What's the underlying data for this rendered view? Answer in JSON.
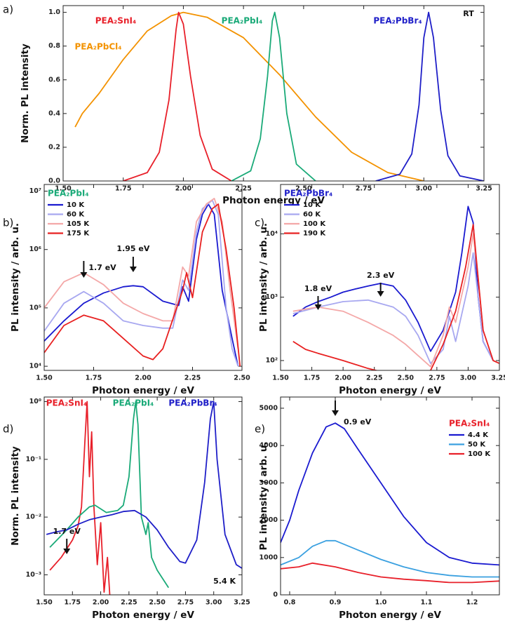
{
  "chart_data": [
    {
      "type": "line",
      "label": "a)",
      "xlabel": "Photon energy / eV",
      "ylabel": "Norm. PL intensity",
      "xlim": [
        1.5,
        3.25
      ],
      "ylim": [
        0,
        1.04
      ],
      "xticks": [
        {
          "value": 1.5,
          "label": "1.50"
        },
        1.75,
        {
          "value": 2,
          "label": "2.00"
        },
        2.25,
        {
          "value": 2.5,
          "label": "2.50"
        },
        2.75,
        {
          "value": 3,
          "label": "3.00"
        },
        3.25
      ],
      "yticks": [
        {
          "value": 0,
          "label": "0.0"
        },
        0.2,
        0.4,
        0.6,
        0.8,
        {
          "value": 1,
          "label": "1.0"
        }
      ],
      "log_y": false,
      "legend": "labels",
      "series": [
        {
          "name": "PEA₂PbCl₄",
          "color": "#f39200",
          "x": [
            1.55,
            1.58,
            1.65,
            1.75,
            1.85,
            1.95,
            2.0,
            2.1,
            2.25,
            2.4,
            2.55,
            2.7,
            2.85,
            3.0
          ],
          "values": [
            0.32,
            0.4,
            0.52,
            0.72,
            0.89,
            0.98,
            1.0,
            0.97,
            0.85,
            0.63,
            0.38,
            0.17,
            0.05,
            0.0
          ]
        },
        {
          "name": "PEA₂SnI₄",
          "color": "#e8202a",
          "x": [
            1.75,
            1.85,
            1.9,
            1.94,
            1.97,
            1.98,
            2.0,
            2.03,
            2.07,
            2.12,
            2.2
          ],
          "values": [
            0,
            0.05,
            0.17,
            0.48,
            0.9,
            1.0,
            0.93,
            0.62,
            0.27,
            0.07,
            0
          ]
        },
        {
          "name": "PEA₂PbI₄",
          "color": "#1aaa78",
          "x": [
            2.2,
            2.28,
            2.32,
            2.35,
            2.37,
            2.38,
            2.4,
            2.43,
            2.47,
            2.55
          ],
          "values": [
            0,
            0.06,
            0.25,
            0.62,
            0.95,
            1.0,
            0.85,
            0.4,
            0.1,
            0
          ]
        },
        {
          "name": "PEA₂PbBr₄",
          "color": "#1f1fc8",
          "x": [
            2.8,
            2.9,
            2.95,
            2.98,
            3.0,
            3.02,
            3.04,
            3.07,
            3.1,
            3.15,
            3.25
          ],
          "values": [
            0,
            0.04,
            0.16,
            0.45,
            0.85,
            1.0,
            0.85,
            0.42,
            0.15,
            0.03,
            0
          ]
        }
      ],
      "annotations": [
        {
          "text": "RT"
        }
      ]
    },
    {
      "type": "line",
      "label": "b)",
      "xlabel": "Photon energy / eV",
      "ylabel": "PL intensity / arb. u.",
      "xlim": [
        1.5,
        2.5
      ],
      "ylim": [
        8500,
        13000000
      ],
      "xticks": [
        {
          "value": 1.5,
          "label": "1.50"
        },
        1.75,
        {
          "value": 2,
          "label": "2.00"
        },
        2.25,
        {
          "value": 2.5,
          "label": "2.50"
        }
      ],
      "yticks": [
        {
          "value": 10000,
          "label": "10⁴"
        },
        {
          "value": 100000,
          "label": "10⁵"
        },
        {
          "value": 1000000,
          "label": "10⁶"
        },
        {
          "value": 10000000,
          "label": "10⁷"
        }
      ],
      "log_y": true,
      "legend": "upper left",
      "legend_title": "PEA₂PbI₄",
      "legend_title_color": "#1aaa78",
      "series": [
        {
          "name": "10 K",
          "color": "#1a1ad0",
          "x": [
            1.5,
            1.6,
            1.7,
            1.8,
            1.9,
            1.95,
            2.0,
            2.1,
            2.18,
            2.2,
            2.23,
            2.27,
            2.3,
            2.33,
            2.36,
            2.4,
            2.45,
            2.48
          ],
          "values": [
            27000,
            60000,
            120000,
            180000,
            230000,
            240000,
            230000,
            130000,
            110000,
            230000,
            130000,
            1500000,
            4000000,
            6000000,
            4000000,
            200000,
            30000,
            10000
          ]
        },
        {
          "name": "60 K",
          "color": "#a8a8f0",
          "x": [
            1.5,
            1.6,
            1.7,
            1.8,
            1.9,
            2.0,
            2.1,
            2.15,
            2.2,
            2.23,
            2.27,
            2.3,
            2.35,
            2.38,
            2.42,
            2.45,
            2.48
          ],
          "values": [
            40000,
            120000,
            190000,
            120000,
            60000,
            50000,
            45000,
            45000,
            300000,
            200000,
            2000000,
            5000000,
            7000000,
            4000000,
            100000,
            20000,
            10000
          ]
        },
        {
          "name": "105 K",
          "color": "#f4a8a8",
          "x": [
            1.5,
            1.6,
            1.7,
            1.8,
            1.9,
            2.0,
            2.1,
            2.15,
            2.2,
            2.23,
            2.27,
            2.32,
            2.36,
            2.4,
            2.44,
            2.48
          ],
          "values": [
            100000,
            280000,
            400000,
            250000,
            120000,
            80000,
            60000,
            60000,
            500000,
            350000,
            3000000,
            6000000,
            7500000,
            3000000,
            200000,
            20000
          ]
        },
        {
          "name": "175 K",
          "color": "#e82020",
          "x": [
            1.5,
            1.6,
            1.7,
            1.8,
            1.9,
            2.0,
            2.05,
            2.1,
            2.2,
            2.22,
            2.25,
            2.3,
            2.35,
            2.38,
            2.42,
            2.46,
            2.49
          ],
          "values": [
            17000,
            50000,
            75000,
            60000,
            30000,
            15000,
            13000,
            20000,
            200000,
            400000,
            150000,
            2000000,
            5000000,
            6000000,
            1000000,
            100000,
            10000
          ]
        }
      ],
      "annotations": [
        {
          "text": "1.7 eV",
          "x": 1.7
        },
        {
          "text": "1.95 eV",
          "x": 1.95
        }
      ]
    },
    {
      "type": "line",
      "label": "c)",
      "xlabel": "Photon energy / eV",
      "ylabel": "PL intensity / arb. u.",
      "xlim": [
        1.5,
        3.25
      ],
      "ylim": [
        70,
        60000
      ],
      "xticks": [
        {
          "value": 1.5,
          "label": "1.50"
        },
        1.75,
        {
          "value": 2,
          "label": "2.00"
        },
        2.25,
        {
          "value": 2.5,
          "label": "2.50"
        },
        2.75,
        {
          "value": 3,
          "label": "3.00"
        },
        3.25
      ],
      "yticks": [
        {
          "value": 100,
          "label": "10²"
        },
        {
          "value": 1000,
          "label": "10³"
        },
        {
          "value": 10000,
          "label": "10⁴"
        }
      ],
      "log_y": true,
      "legend": "upper left",
      "legend_title": "PEA₂PbBr₄",
      "legend_title_color": "#1f1fc8",
      "series": [
        {
          "name": "10 K",
          "color": "#1a1ad0",
          "x": [
            1.6,
            1.7,
            1.8,
            1.9,
            2.0,
            2.1,
            2.2,
            2.3,
            2.4,
            2.5,
            2.6,
            2.7,
            2.8,
            2.9,
            2.95,
            3.0,
            3.04,
            3.08,
            3.12,
            3.2
          ],
          "values": [
            500,
            700,
            850,
            1000,
            1200,
            1350,
            1500,
            1650,
            1500,
            900,
            400,
            140,
            300,
            1200,
            5000,
            27000,
            15000,
            1000,
            200,
            100
          ]
        },
        {
          "name": "60 K",
          "color": "#a8a8f0",
          "x": [
            1.6,
            1.8,
            2.0,
            2.2,
            2.4,
            2.5,
            2.6,
            2.7,
            2.8,
            2.85,
            2.9,
            3.0,
            3.04,
            3.08,
            3.12,
            3.2
          ],
          "values": [
            550,
            700,
            850,
            900,
            700,
            500,
            250,
            90,
            150,
            500,
            200,
            1500,
            5000,
            1000,
            200,
            100
          ]
        },
        {
          "name": "100 K",
          "color": "#f4a8a8",
          "x": [
            1.6,
            1.8,
            2.0,
            2.2,
            2.4,
            2.5,
            2.6,
            2.7,
            2.8,
            2.85,
            2.9,
            3.0,
            3.04,
            3.08,
            3.12,
            3.2
          ],
          "values": [
            600,
            700,
            600,
            400,
            250,
            180,
            120,
            80,
            250,
            700,
            400,
            3000,
            10000,
            2000,
            300,
            100
          ]
        },
        {
          "name": "190 K",
          "color": "#e82020",
          "x": [
            1.6,
            1.7,
            1.8,
            2.0,
            2.2,
            2.4,
            2.6,
            2.7,
            2.8,
            2.9,
            2.98,
            3.04,
            3.08,
            3.12,
            3.2,
            3.25
          ],
          "values": [
            200,
            150,
            130,
            100,
            75,
            60,
            60,
            70,
            180,
            600,
            3000,
            14000,
            2000,
            300,
            100,
            90
          ]
        }
      ],
      "annotations": [
        {
          "text": "1.8 eV",
          "x": 1.8
        },
        {
          "text": "2.3 eV",
          "x": 2.3
        }
      ]
    },
    {
      "type": "line",
      "label": "d)",
      "xlabel": "Photon energy / eV",
      "ylabel": "Norm. PL intensity",
      "xlim": [
        1.5,
        3.25
      ],
      "ylim": [
        0.00045,
        1.2
      ],
      "xticks": [
        {
          "value": 1.5,
          "label": "1.50"
        },
        1.75,
        {
          "value": 2,
          "label": "2.00"
        },
        2.25,
        {
          "value": 2.5,
          "label": "2.50"
        },
        2.75,
        {
          "value": 3,
          "label": "3.00"
        },
        3.25
      ],
      "yticks": [
        {
          "value": 0.001,
          "label": "10⁻³"
        },
        {
          "value": 0.01,
          "label": "10⁻²"
        },
        {
          "value": 0.1,
          "label": "10⁻¹"
        },
        {
          "value": 1,
          "label": "10⁰"
        }
      ],
      "log_y": true,
      "legend": "labels",
      "series": [
        {
          "name": "PEA₂SnI₄",
          "color": "#e8202a",
          "x": [
            1.55,
            1.65,
            1.75,
            1.8,
            1.83,
            1.86,
            1.88,
            1.9,
            1.92,
            1.94,
            1.97,
            2.0,
            2.03,
            2.06,
            2.08
          ],
          "values": [
            0.0012,
            0.002,
            0.004,
            0.007,
            0.015,
            0.2,
            1.0,
            0.05,
            0.3,
            0.015,
            0.0015,
            0.008,
            0.0005,
            0.002,
            0.00045
          ]
        },
        {
          "name": "PEA₂PbI₄",
          "color": "#1aaa78",
          "x": [
            1.55,
            1.7,
            1.8,
            1.9,
            1.95,
            2.05,
            2.15,
            2.2,
            2.25,
            2.29,
            2.31,
            2.33,
            2.36,
            2.4,
            2.42,
            2.45,
            2.5,
            2.6
          ],
          "values": [
            0.003,
            0.006,
            0.01,
            0.015,
            0.016,
            0.012,
            0.013,
            0.016,
            0.05,
            0.5,
            1.0,
            0.4,
            0.01,
            0.005,
            0.008,
            0.002,
            0.0012,
            0.0006
          ]
        },
        {
          "name": "PEA₂PbBr₄",
          "color": "#1f1fc8",
          "x": [
            1.52,
            1.6,
            1.7,
            1.8,
            1.9,
            2.0,
            2.1,
            2.2,
            2.3,
            2.4,
            2.5,
            2.6,
            2.7,
            2.75,
            2.85,
            2.92,
            2.97,
            3.0,
            3.03,
            3.1,
            3.2,
            3.25
          ],
          "values": [
            0.005,
            0.0055,
            0.006,
            0.0075,
            0.009,
            0.01,
            0.011,
            0.0125,
            0.013,
            0.01,
            0.006,
            0.003,
            0.0017,
            0.0016,
            0.004,
            0.04,
            0.5,
            1.0,
            0.1,
            0.005,
            0.0015,
            0.0013
          ]
        }
      ],
      "annotations": [
        {
          "text": "1.7 eV",
          "x": 1.7
        },
        {
          "text": "5.4 K"
        }
      ]
    },
    {
      "type": "line",
      "label": "e)",
      "xlabel": "Photon energy / eV",
      "ylabel": "PL intensity / arb. u.",
      "xlim": [
        0.78,
        1.26
      ],
      "ylim": [
        0,
        5300
      ],
      "xticks": [
        0.8,
        0.9,
        {
          "value": 1,
          "label": "1.0"
        },
        1.1,
        1.2
      ],
      "yticks": [
        0,
        1000,
        2000,
        3000,
        4000,
        5000
      ],
      "log_y": false,
      "legend": "upper right",
      "legend_title": "PEA₂SnI₄",
      "legend_title_color": "#e8202a",
      "series": [
        {
          "name": "4.4 K",
          "color": "#1a1ad0",
          "x": [
            0.78,
            0.8,
            0.82,
            0.85,
            0.88,
            0.9,
            0.92,
            0.95,
            1.0,
            1.05,
            1.1,
            1.15,
            1.2,
            1.26
          ],
          "values": [
            1400,
            2000,
            2800,
            3800,
            4500,
            4600,
            4450,
            3900,
            3000,
            2100,
            1400,
            1000,
            850,
            800
          ]
        },
        {
          "name": "50 K",
          "color": "#3aa0e0",
          "x": [
            0.78,
            0.82,
            0.85,
            0.88,
            0.9,
            0.95,
            1.0,
            1.05,
            1.1,
            1.15,
            1.2,
            1.26
          ],
          "values": [
            800,
            1000,
            1300,
            1450,
            1450,
            1200,
            950,
            750,
            600,
            520,
            480,
            480
          ]
        },
        {
          "name": "100 K",
          "color": "#e8202a",
          "x": [
            0.78,
            0.82,
            0.85,
            0.9,
            0.95,
            1.0,
            1.05,
            1.1,
            1.15,
            1.2,
            1.26
          ],
          "values": [
            700,
            750,
            850,
            750,
            600,
            480,
            420,
            380,
            330,
            330,
            370
          ]
        }
      ],
      "annotations": [
        {
          "text": "0.9 eV",
          "x": 0.9
        }
      ]
    }
  ]
}
